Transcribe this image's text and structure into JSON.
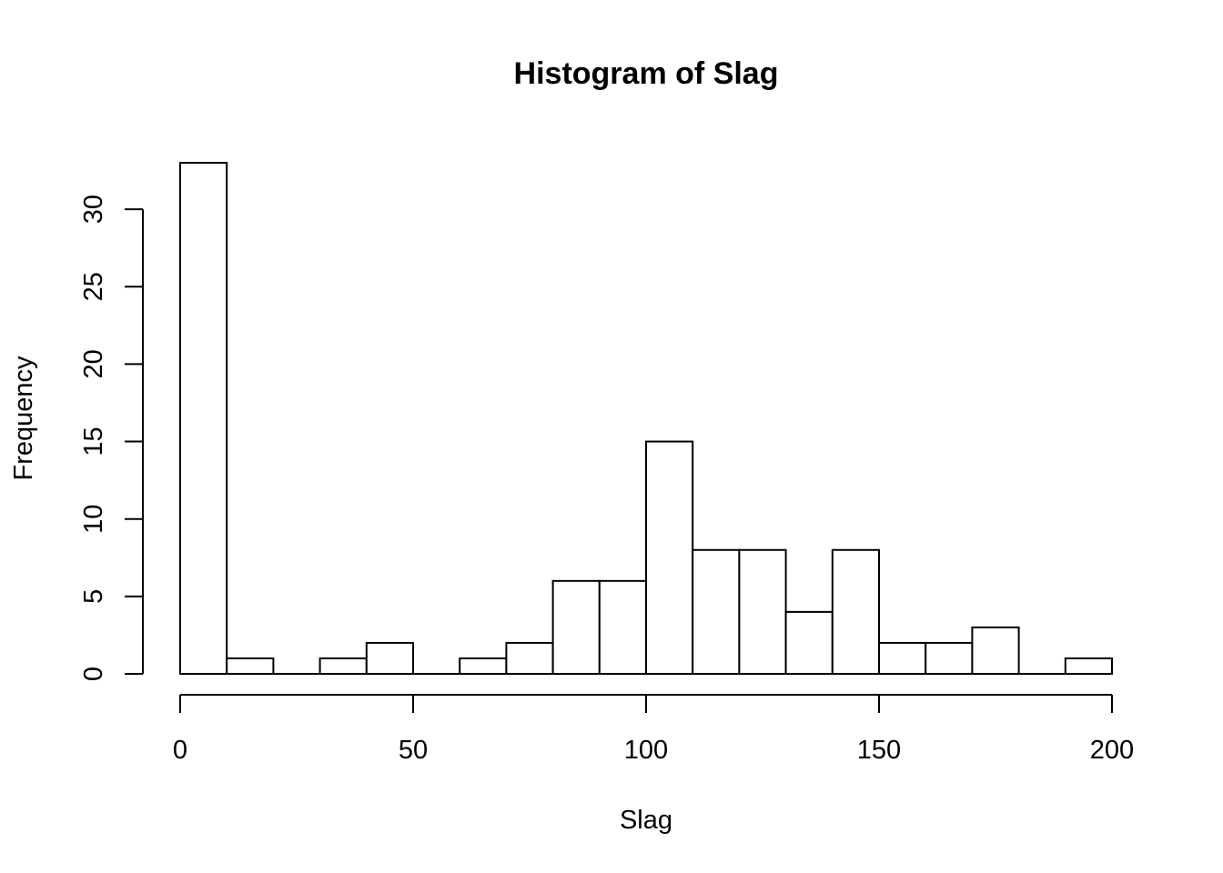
{
  "chart_data": {
    "type": "bar",
    "subtype": "histogram",
    "title": "Histogram of Slag",
    "xlabel": "Slag",
    "ylabel": "Frequency",
    "bin_width": 10,
    "bins": [
      {
        "start": 0,
        "end": 10,
        "count": 33
      },
      {
        "start": 10,
        "end": 20,
        "count": 1
      },
      {
        "start": 20,
        "end": 30,
        "count": 0
      },
      {
        "start": 30,
        "end": 40,
        "count": 1
      },
      {
        "start": 40,
        "end": 50,
        "count": 2
      },
      {
        "start": 50,
        "end": 60,
        "count": 0
      },
      {
        "start": 60,
        "end": 70,
        "count": 1
      },
      {
        "start": 70,
        "end": 80,
        "count": 2
      },
      {
        "start": 80,
        "end": 90,
        "count": 6
      },
      {
        "start": 90,
        "end": 100,
        "count": 6
      },
      {
        "start": 100,
        "end": 110,
        "count": 15
      },
      {
        "start": 110,
        "end": 120,
        "count": 8
      },
      {
        "start": 120,
        "end": 130,
        "count": 8
      },
      {
        "start": 130,
        "end": 140,
        "count": 4
      },
      {
        "start": 140,
        "end": 150,
        "count": 8
      },
      {
        "start": 150,
        "end": 160,
        "count": 2
      },
      {
        "start": 160,
        "end": 170,
        "count": 2
      },
      {
        "start": 170,
        "end": 180,
        "count": 3
      },
      {
        "start": 180,
        "end": 190,
        "count": 0
      },
      {
        "start": 190,
        "end": 200,
        "count": 1
      }
    ],
    "xlim": [
      0,
      200
    ],
    "ylim": [
      0,
      33
    ],
    "x_ticks": [
      0,
      50,
      100,
      150,
      200
    ],
    "y_ticks": [
      0,
      5,
      10,
      15,
      20,
      25,
      30
    ],
    "grid": false,
    "legend": "none",
    "colors": {
      "bar_fill": "#ffffff",
      "bar_stroke": "#000000"
    }
  }
}
